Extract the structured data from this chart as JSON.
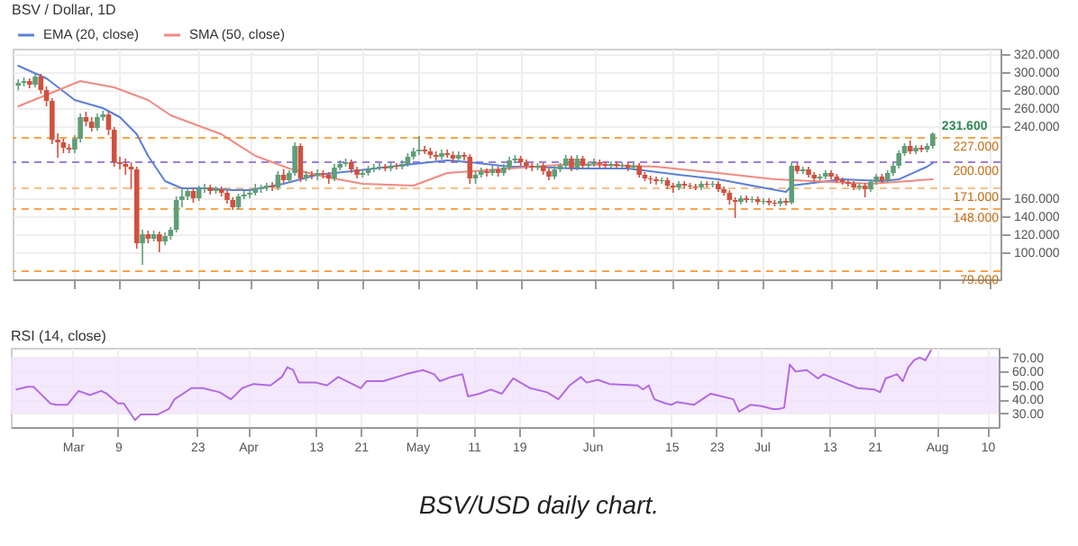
{
  "chart_data": [
    {
      "type": "candlestick",
      "title": "BSV / Dollar, 1D",
      "x": [
        "--02-20",
        "--02-21",
        "--02-22",
        "--02-23",
        "--02-24",
        "--02-25",
        "--02-26",
        "--02-27",
        "--02-28",
        "--02-29",
        "--03-01",
        "--03-02",
        "--03-03",
        "--03-04",
        "--03-05",
        "--03-06",
        "--03-07",
        "--03-08",
        "--03-09",
        "--03-10",
        "--03-11",
        "--03-12",
        "--03-13",
        "--03-14",
        "--03-15",
        "--03-16",
        "--03-17",
        "--03-18",
        "--03-19",
        "--03-20",
        "--03-21",
        "--03-22",
        "--03-23",
        "--03-24",
        "--03-25",
        "--03-26",
        "--03-27",
        "--03-28",
        "--03-29",
        "--03-30",
        "--03-31",
        "--04-01",
        "--04-02",
        "--04-03",
        "--04-04",
        "--04-05",
        "--04-06",
        "--04-07",
        "--04-08",
        "--04-09",
        "--04-10",
        "--04-11",
        "--04-12",
        "--04-13",
        "--04-14",
        "--04-15",
        "--04-16",
        "--04-17",
        "--04-18",
        "--04-19",
        "--04-20",
        "--04-21",
        "--04-22",
        "--04-23",
        "--04-24",
        "--04-25",
        "--04-26",
        "--04-27",
        "--04-28",
        "--04-29",
        "--04-30",
        "--05-01",
        "--05-02",
        "--05-03",
        "--05-04",
        "--05-05",
        "--05-06",
        "--05-07",
        "--05-08",
        "--05-09",
        "--05-10",
        "--05-11",
        "--05-12",
        "--05-13",
        "--05-14",
        "--05-15",
        "--05-16",
        "--05-17",
        "--05-18",
        "--05-19",
        "--05-20",
        "--05-21",
        "--05-22",
        "--05-23",
        "--05-24",
        "--05-25",
        "--05-26",
        "--05-27",
        "--05-28",
        "--05-29",
        "--05-30",
        "--05-31",
        "--06-01",
        "--06-02",
        "--06-03",
        "--06-04",
        "--06-05",
        "--06-06",
        "--06-07",
        "--06-08",
        "--06-09",
        "--06-10",
        "--06-11",
        "--06-12",
        "--06-13",
        "--06-14",
        "--06-15",
        "--06-16",
        "--06-17",
        "--06-18",
        "--06-19",
        "--06-20",
        "--06-21",
        "--06-22",
        "--06-23",
        "--06-24",
        "--06-25",
        "--06-26",
        "--06-27",
        "--06-28",
        "--06-29",
        "--06-30",
        "--07-01",
        "--07-02",
        "--07-03",
        "--07-04",
        "--07-05",
        "--07-06",
        "--07-07",
        "--07-08",
        "--07-09",
        "--07-10",
        "--07-11",
        "--07-12",
        "--07-13",
        "--07-14",
        "--07-15",
        "--07-16",
        "--07-17",
        "--07-18",
        "--07-19",
        "--07-20",
        "--07-21",
        "--07-22",
        "--07-23",
        "--07-24",
        "--07-25",
        "--07-26",
        "--07-27",
        "--07-28",
        "--07-29",
        "--07-30",
        "--07-31"
      ],
      "ohlc": [
        [
          285,
          292,
          280,
          288
        ],
        [
          288,
          294,
          284,
          290
        ],
        [
          290,
          293,
          282,
          286
        ],
        [
          286,
          298,
          283,
          295
        ],
        [
          295,
          298,
          276,
          280
        ],
        [
          280,
          284,
          262,
          268
        ],
        [
          268,
          271,
          220,
          225
        ],
        [
          225,
          232,
          205,
          222
        ],
        [
          222,
          226,
          210,
          216
        ],
        [
          216,
          220,
          210,
          214
        ],
        [
          214,
          230,
          210,
          226
        ],
        [
          226,
          254,
          222,
          250
        ],
        [
          250,
          256,
          240,
          245
        ],
        [
          245,
          250,
          234,
          238
        ],
        [
          238,
          254,
          235,
          250
        ],
        [
          250,
          257,
          246,
          253
        ],
        [
          253,
          256,
          230,
          236
        ],
        [
          236,
          239,
          195,
          200
        ],
        [
          200,
          206,
          192,
          198
        ],
        [
          198,
          204,
          186,
          195
        ],
        [
          195,
          200,
          170,
          192
        ],
        [
          192,
          195,
          104,
          110
        ],
        [
          110,
          125,
          86,
          120
        ],
        [
          120,
          124,
          110,
          115
        ],
        [
          115,
          124,
          112,
          120
        ],
        [
          120,
          123,
          100,
          112
        ],
        [
          112,
          122,
          108,
          118
        ],
        [
          118,
          128,
          114,
          125
        ],
        [
          125,
          162,
          122,
          158
        ],
        [
          158,
          170,
          150,
          162
        ],
        [
          162,
          172,
          158,
          168
        ],
        [
          168,
          171,
          155,
          160
        ],
        [
          160,
          174,
          157,
          170
        ],
        [
          170,
          176,
          166,
          172
        ],
        [
          172,
          175,
          164,
          168
        ],
        [
          168,
          173,
          165,
          170
        ],
        [
          170,
          173,
          162,
          166
        ],
        [
          166,
          169,
          154,
          158
        ],
        [
          158,
          161,
          147,
          150
        ],
        [
          150,
          165,
          147,
          162
        ],
        [
          162,
          168,
          159,
          164
        ],
        [
          164,
          170,
          160,
          166
        ],
        [
          166,
          176,
          163,
          170
        ],
        [
          170,
          175,
          166,
          172
        ],
        [
          172,
          177,
          168,
          174
        ],
        [
          174,
          178,
          168,
          172
        ],
        [
          172,
          190,
          169,
          186
        ],
        [
          186,
          192,
          177,
          180
        ],
        [
          180,
          191,
          177,
          188
        ],
        [
          188,
          222,
          185,
          218
        ],
        [
          218,
          221,
          178,
          182
        ],
        [
          182,
          190,
          179,
          186
        ],
        [
          186,
          190,
          181,
          185
        ],
        [
          185,
          192,
          180,
          188
        ],
        [
          188,
          191,
          182,
          186
        ],
        [
          186,
          189,
          176,
          182
        ],
        [
          182,
          198,
          179,
          194
        ],
        [
          194,
          202,
          191,
          198
        ],
        [
          198,
          204,
          195,
          200
        ],
        [
          200,
          203,
          188,
          192
        ],
        [
          192,
          195,
          182,
          186
        ],
        [
          186,
          192,
          183,
          188
        ],
        [
          188,
          196,
          185,
          192
        ],
        [
          192,
          198,
          189,
          194
        ],
        [
          194,
          199,
          191,
          195
        ],
        [
          195,
          198,
          190,
          193
        ],
        [
          193,
          200,
          190,
          196
        ],
        [
          196,
          199,
          192,
          195
        ],
        [
          195,
          202,
          192,
          198
        ],
        [
          198,
          210,
          195,
          206
        ],
        [
          206,
          216,
          203,
          212
        ],
        [
          212,
          229,
          208,
          214
        ],
        [
          214,
          218,
          209,
          212
        ],
        [
          212,
          216,
          204,
          208
        ],
        [
          208,
          212,
          202,
          206
        ],
        [
          206,
          214,
          203,
          210
        ],
        [
          210,
          214,
          205,
          208
        ],
        [
          208,
          212,
          200,
          204
        ],
        [
          204,
          212,
          201,
          208
        ],
        [
          208,
          211,
          202,
          206
        ],
        [
          206,
          209,
          176,
          182
        ],
        [
          182,
          190,
          176,
          186
        ],
        [
          186,
          194,
          183,
          190
        ],
        [
          190,
          193,
          184,
          188
        ],
        [
          188,
          196,
          185,
          192
        ],
        [
          192,
          195,
          184,
          188
        ],
        [
          188,
          198,
          185,
          194
        ],
        [
          194,
          206,
          191,
          202
        ],
        [
          202,
          208,
          199,
          204
        ],
        [
          204,
          207,
          196,
          200
        ],
        [
          200,
          203,
          192,
          196
        ],
        [
          196,
          199,
          190,
          194
        ],
        [
          194,
          199,
          191,
          196
        ],
        [
          196,
          199,
          186,
          190
        ],
        [
          190,
          193,
          180,
          184
        ],
        [
          184,
          196,
          181,
          192
        ],
        [
          192,
          199,
          189,
          196
        ],
        [
          196,
          208,
          193,
          204
        ],
        [
          204,
          207,
          190,
          194
        ],
        [
          194,
          208,
          191,
          204
        ],
        [
          204,
          207,
          193,
          196
        ],
        [
          196,
          201,
          193,
          198
        ],
        [
          198,
          204,
          195,
          200
        ],
        [
          200,
          203,
          194,
          198
        ],
        [
          198,
          201,
          193,
          196
        ],
        [
          196,
          201,
          193,
          198
        ],
        [
          198,
          201,
          193,
          196
        ],
        [
          196,
          200,
          193,
          197
        ],
        [
          197,
          200,
          190,
          194
        ],
        [
          194,
          199,
          191,
          196
        ],
        [
          196,
          199,
          183,
          186
        ],
        [
          186,
          189,
          179,
          182
        ],
        [
          182,
          185,
          176,
          181
        ],
        [
          181,
          184,
          175,
          179
        ],
        [
          179,
          183,
          176,
          180
        ],
        [
          180,
          183,
          170,
          174
        ],
        [
          174,
          177,
          166,
          172
        ],
        [
          172,
          179,
          169,
          176
        ],
        [
          176,
          179,
          171,
          174
        ],
        [
          174,
          177,
          170,
          173
        ],
        [
          173,
          176,
          169,
          172
        ],
        [
          172,
          179,
          169,
          176
        ],
        [
          176,
          179,
          172,
          175
        ],
        [
          175,
          179,
          172,
          176
        ],
        [
          176,
          179,
          167,
          170
        ],
        [
          170,
          173,
          163,
          166
        ],
        [
          166,
          169,
          153,
          158
        ],
        [
          158,
          161,
          138,
          156
        ],
        [
          156,
          163,
          153,
          160
        ],
        [
          160,
          163,
          155,
          158
        ],
        [
          158,
          162,
          155,
          159
        ],
        [
          159,
          162,
          153,
          156
        ],
        [
          156,
          160,
          153,
          157
        ],
        [
          157,
          160,
          152,
          155
        ],
        [
          155,
          158,
          151,
          154
        ],
        [
          154,
          160,
          151,
          157
        ],
        [
          157,
          160,
          152,
          155
        ],
        [
          155,
          200,
          153,
          196
        ],
        [
          196,
          199,
          187,
          190
        ],
        [
          190,
          195,
          187,
          192
        ],
        [
          192,
          195,
          183,
          186
        ],
        [
          186,
          189,
          179,
          182
        ],
        [
          182,
          187,
          179,
          184
        ],
        [
          184,
          191,
          181,
          188
        ],
        [
          188,
          191,
          181,
          184
        ],
        [
          184,
          187,
          177,
          180
        ],
        [
          180,
          183,
          175,
          178
        ],
        [
          178,
          181,
          173,
          176
        ],
        [
          176,
          179,
          169,
          172
        ],
        [
          172,
          177,
          169,
          174
        ],
        [
          174,
          177,
          161,
          170
        ],
        [
          170,
          181,
          167,
          178
        ],
        [
          178,
          187,
          175,
          184
        ],
        [
          184,
          187,
          177,
          180
        ],
        [
          180,
          191,
          177,
          188
        ],
        [
          188,
          199,
          185,
          196
        ],
        [
          196,
          213,
          193,
          210
        ],
        [
          210,
          221,
          207,
          218
        ],
        [
          218,
          224,
          209,
          212
        ],
        [
          212,
          219,
          209,
          216
        ],
        [
          216,
          219,
          211,
          214
        ],
        [
          214,
          221,
          211,
          218
        ],
        [
          218,
          233,
          215,
          231.6
        ]
      ],
      "series": [
        {
          "type": "line",
          "name": "EMA (20, close)",
          "color": "#5b7fd6",
          "x": [
            "--02-20",
            "--02-25",
            "--03-01",
            "--03-06",
            "--03-09",
            "--03-12",
            "--03-14",
            "--03-17",
            "--03-20",
            "--03-24",
            "--03-29",
            "--04-01",
            "--04-07",
            "--04-13",
            "--04-19",
            "--04-30",
            "--05-06",
            "--05-10",
            "--05-17",
            "--05-21",
            "--05-28",
            "--06-07",
            "--06-16",
            "--06-23",
            "--06-29",
            "--07-05",
            "--07-06",
            "--07-15",
            "--07-22",
            "--07-25",
            "--07-30",
            "--07-31"
          ],
          "values": [
            307,
            293,
            269,
            260,
            250,
            231,
            207,
            179,
            171,
            171,
            169,
            169,
            176,
            186,
            190,
            198,
            202,
            200,
            195,
            195,
            193,
            193,
            186,
            181,
            174,
            167,
            174,
            181,
            179,
            181,
            195,
            199
          ]
        },
        {
          "type": "line",
          "name": "SMA (50, close)",
          "color": "#f08a80",
          "x": [
            "--02-20",
            "--03-02",
            "--03-08",
            "--03-14",
            "--03-18",
            "--03-27",
            "--04-02",
            "--04-08",
            "--04-15",
            "--04-21",
            "--04-30",
            "--05-06",
            "--05-17",
            "--05-28",
            "--06-12",
            "--06-23",
            "--07-03",
            "--07-20",
            "--07-31"
          ],
          "values": [
            262,
            290,
            283,
            269,
            252,
            231,
            207,
            193,
            183,
            176,
            174,
            188,
            193,
            198,
            195,
            188,
            181,
            176,
            181
          ]
        }
      ],
      "xlim": [
        "--02-19",
        "--08-12"
      ],
      "xticks": [
        {
          "value": "--03-01",
          "label": "Mar"
        },
        {
          "value": "--03-09",
          "label": "9"
        },
        {
          "value": "--03-23",
          "label": "23"
        },
        {
          "value": "--04-01",
          "label": "Apr"
        },
        {
          "value": "--04-13",
          "label": "13"
        },
        {
          "value": "--04-21",
          "label": "21"
        },
        {
          "value": "--05-01",
          "label": "May"
        },
        {
          "value": "--05-11",
          "label": "11"
        },
        {
          "value": "--05-19",
          "label": "19"
        },
        {
          "value": "--06-01",
          "label": "Jun"
        },
        {
          "value": "--06-15",
          "label": "15"
        },
        {
          "value": "--06-23",
          "label": "23"
        },
        {
          "value": "--07-01",
          "label": "Jul"
        },
        {
          "value": "--07-13",
          "label": "13"
        },
        {
          "value": "--07-21",
          "label": "21"
        },
        {
          "value": "--08-01",
          "label": "Aug"
        },
        {
          "value": "--08-10",
          "label": "10"
        }
      ],
      "ylim": [
        70,
        326
      ],
      "yticks": [
        {
          "value": 100,
          "label": "100.000"
        },
        {
          "value": 120,
          "label": "120.000"
        },
        {
          "value": 140,
          "label": "140.000"
        },
        {
          "value": 160,
          "label": "160.000"
        },
        {
          "value": 240,
          "label": "240.000"
        },
        {
          "value": 260,
          "label": "260.000"
        },
        {
          "value": 280,
          "label": "280.000"
        },
        {
          "value": 300,
          "label": "300.000"
        },
        {
          "value": 320,
          "label": "320.000"
        }
      ],
      "ref_lines": [
        {
          "axis": "y",
          "value": 227,
          "label": "227.000",
          "color": "#f7a54a",
          "line_style": "dashed"
        },
        {
          "axis": "y",
          "value": 200,
          "label": "200.000",
          "color": "#9b7fe0",
          "line_style": "dashed"
        },
        {
          "axis": "y",
          "value": 171,
          "label": "171.000",
          "color": "#f7c08a",
          "line_style": "dashed"
        },
        {
          "axis": "y",
          "value": 148,
          "label": "148.000",
          "color": "#f7a54a",
          "line_style": "dashed"
        },
        {
          "axis": "y",
          "value": 79,
          "label": "79.000",
          "color": "#f7a54a",
          "line_style": "dashed"
        }
      ],
      "annotations": [
        {
          "text": "231.600",
          "x": "--07-31",
          "y": 231.6
        }
      ],
      "grid": true,
      "legend": "top",
      "tick_labels": "y"
    },
    {
      "type": "line",
      "title": "RSI (14, close)",
      "series": [
        {
          "color": "#b36ae2",
          "x": [
            "--02-20",
            "--02-22",
            "--02-23",
            "--02-24",
            "--02-26",
            "--02-27",
            "--02-29",
            "--03-02",
            "--03-04",
            "--03-06",
            "--03-07",
            "--03-09",
            "--03-10",
            "--03-12",
            "--03-13",
            "--03-16",
            "--03-18",
            "--03-19",
            "--03-22",
            "--03-24",
            "--03-27",
            "--03-29",
            "--03-31",
            "--04-02",
            "--04-05",
            "--04-07",
            "--04-08",
            "--04-09",
            "--04-10",
            "--04-13",
            "--04-15",
            "--04-17",
            "--04-19",
            "--04-21",
            "--04-22",
            "--04-25",
            "--04-29",
            "--05-02",
            "--05-04",
            "--05-05",
            "--05-07",
            "--05-09",
            "--05-10",
            "--05-12",
            "--05-14",
            "--05-16",
            "--05-18",
            "--05-21",
            "--05-24",
            "--05-26",
            "--05-28",
            "--05-30",
            "--05-31",
            "--06-02",
            "--06-04",
            "--06-09",
            "--06-10",
            "--06-11",
            "--06-12",
            "--06-14",
            "--06-15",
            "--06-16",
            "--06-19",
            "--06-22",
            "--06-24",
            "--06-26",
            "--06-27",
            "--06-29",
            "--07-01",
            "--07-03",
            "--07-04",
            "--07-05",
            "--07-06",
            "--07-07",
            "--07-09",
            "--07-11",
            "--07-12",
            "--07-15",
            "--07-18",
            "--07-21",
            "--07-22",
            "--07-23",
            "--07-25",
            "--07-26",
            "--07-27",
            "--07-28",
            "--07-29",
            "--07-30",
            "--07-31"
          ],
          "values": [
            47,
            49,
            49,
            45,
            37,
            36,
            36,
            46,
            43,
            46,
            44,
            37,
            37,
            25,
            29,
            29,
            33,
            40,
            48,
            48,
            45,
            40,
            48,
            51,
            50,
            56,
            63,
            61,
            52,
            52,
            50,
            56,
            52,
            48,
            53,
            53,
            58,
            61,
            58,
            53,
            56,
            58,
            42,
            44,
            47,
            44,
            55,
            48,
            45,
            40,
            50,
            56,
            52,
            54,
            51,
            50,
            47,
            50,
            40,
            37,
            36,
            38,
            36,
            44,
            42,
            40,
            31,
            36,
            35,
            33,
            33,
            34,
            65,
            60,
            61,
            55,
            58,
            53,
            48,
            47,
            45,
            55,
            58,
            53,
            63,
            68,
            70,
            68,
            75
          ]
        }
      ],
      "bands": [
        {
          "axis": "y",
          "from": 30,
          "to": 70,
          "color": "#f1e2fb"
        }
      ],
      "xlim": [
        "--02-19",
        "--08-12"
      ],
      "xticks": [
        {
          "value": "--03-01",
          "label": "Mar"
        },
        {
          "value": "--03-09",
          "label": "9"
        },
        {
          "value": "--03-23",
          "label": "23"
        },
        {
          "value": "--04-01",
          "label": "Apr"
        },
        {
          "value": "--04-13",
          "label": "13"
        },
        {
          "value": "--04-21",
          "label": "21"
        },
        {
          "value": "--05-01",
          "label": "May"
        },
        {
          "value": "--05-11",
          "label": "11"
        },
        {
          "value": "--05-19",
          "label": "19"
        },
        {
          "value": "--06-01",
          "label": "Jun"
        },
        {
          "value": "--06-15",
          "label": "15"
        },
        {
          "value": "--06-23",
          "label": "23"
        },
        {
          "value": "--07-01",
          "label": "Jul"
        },
        {
          "value": "--07-13",
          "label": "13"
        },
        {
          "value": "--07-21",
          "label": "21"
        },
        {
          "value": "--08-01",
          "label": "Aug"
        },
        {
          "value": "--08-10",
          "label": "10"
        }
      ],
      "ylim": [
        20,
        77
      ],
      "yticks": [
        {
          "value": 30,
          "label": "30.00"
        },
        {
          "value": 40,
          "label": "40.00"
        },
        {
          "value": 50,
          "label": "50.00"
        },
        {
          "value": 60,
          "label": "60.00"
        },
        {
          "value": 70,
          "label": "70.00"
        }
      ],
      "annotations": [
        "BSV/USD daily chart."
      ],
      "grid": true
    }
  ]
}
